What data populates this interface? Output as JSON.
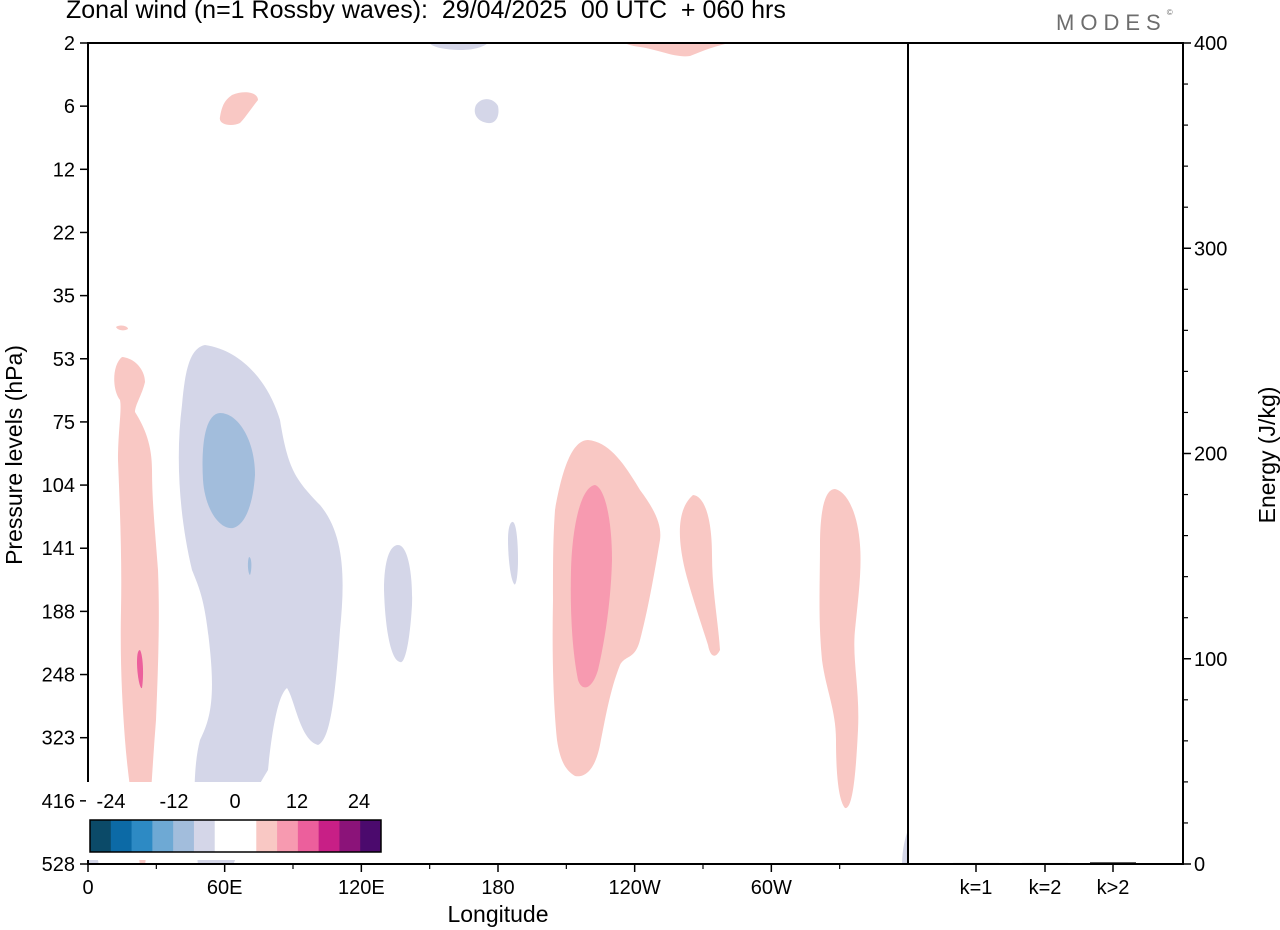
{
  "title": "Zonal wind (n=1 Rossby waves):  29/04/2025  00 UTC  + 060 hrs",
  "logo": "MODES",
  "logo_mark": "©",
  "colors": {
    "neg_4": "#0b4a68",
    "neg_3": "#0c6aa6",
    "neg_2": "#2d8ac4",
    "neg_1": "#6ea9d4",
    "neg_0": "#a2bddc",
    "neg_light": "#d4d6e8",
    "zero": "#ffffff",
    "pos_light": "#f9c8c4",
    "pos_1": "#f79ab0",
    "pos_2": "#ec5f9c",
    "pos_3": "#c81f86",
    "pos_4": "#8b1379",
    "pos_5": "#4b0a6d",
    "frame": "#000000"
  },
  "chart_data": [
    {
      "type": "heatmap",
      "title": "Zonal wind (n=1 Rossby waves):  29/04/2025  00 UTC  + 060 hrs",
      "xlabel": "Longitude",
      "ylabel": "Pressure levels (hPa)",
      "x_ticks": [
        "0",
        "60E",
        "120E",
        "180",
        "120W",
        "60W"
      ],
      "x_range_deg": [
        0,
        360
      ],
      "y_ticks": [
        "2",
        "6",
        "12",
        "22",
        "35",
        "53",
        "75",
        "104",
        "141",
        "188",
        "248",
        "323",
        "416",
        "528"
      ],
      "y_scale": "pressure levels, top = 2 hPa, bottom = 528 hPa",
      "colorbar": {
        "labels": [
          "-24",
          "-12",
          "0",
          "12",
          "24"
        ],
        "colors": [
          "#0b4a68",
          "#0c6aa6",
          "#2d8ac4",
          "#6ea9d4",
          "#a2bddc",
          "#d4d6e8",
          "#ffffff",
          "#ffffff",
          "#f9c8c4",
          "#f79ab0",
          "#ec5f9c",
          "#c81f86",
          "#8b1379",
          "#4b0a6d"
        ]
      },
      "features": [
        {
          "sign": "positive",
          "level": "light",
          "lon": 20,
          "pressure_range": [
            53,
            480
          ]
        },
        {
          "sign": "positive",
          "level": 2,
          "lon": 23,
          "pressure": 248
        },
        {
          "sign": "positive",
          "level": "light",
          "lon": 65,
          "pressure": 6
        },
        {
          "sign": "negative",
          "level": "light",
          "lon": 75,
          "pressure_range": [
            53,
            528
          ]
        },
        {
          "sign": "negative",
          "level": 1,
          "lon": 62,
          "pressure_range": [
            75,
            130
          ]
        },
        {
          "sign": "negative",
          "level": "light",
          "lon": 137,
          "pressure_range": [
            141,
            248
          ]
        },
        {
          "sign": "negative",
          "level": "light",
          "lon": 175,
          "pressure": 6
        },
        {
          "sign": "negative",
          "level": "light",
          "lon": 186,
          "pressure": 141
        },
        {
          "sign": "positive",
          "level": "light",
          "lon": 220,
          "pressure_range": [
            75,
            380
          ]
        },
        {
          "sign": "positive",
          "level": 1,
          "lon": 220,
          "pressure_range": [
            104,
            248
          ]
        },
        {
          "sign": "positive",
          "level": "light",
          "lon": 260,
          "pressure_range": [
            104,
            248
          ]
        },
        {
          "sign": "positive",
          "level": "light",
          "lon": 333,
          "pressure_range": [
            104,
            416
          ]
        },
        {
          "sign": "positive",
          "level": "light",
          "lon": 265,
          "pressure": 2
        }
      ]
    },
    {
      "type": "bar",
      "categories": [
        "k=1",
        "k=2",
        "k>2"
      ],
      "values": [
        0.5,
        0.5,
        0.8
      ],
      "ylabel": "Energy (J/kg)",
      "ylim": [
        0,
        400
      ],
      "y_ticks": [
        0,
        100,
        200,
        300,
        400
      ]
    }
  ]
}
